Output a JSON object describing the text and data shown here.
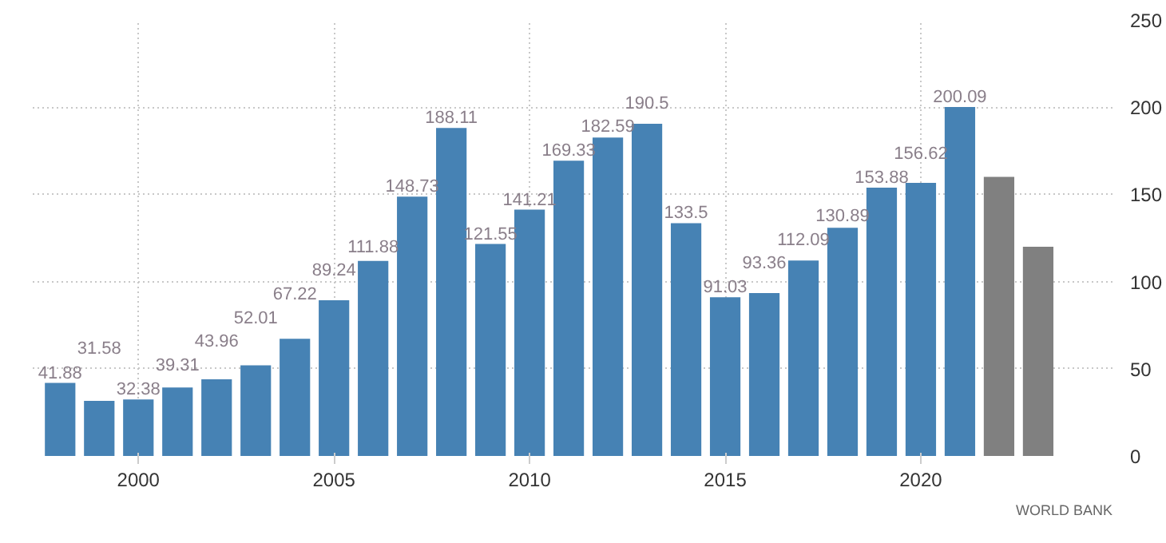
{
  "chart_data": {
    "type": "bar",
    "x": [
      1998,
      1999,
      2000,
      2001,
      2002,
      2003,
      2004,
      2005,
      2006,
      2007,
      2008,
      2009,
      2010,
      2011,
      2012,
      2013,
      2014,
      2015,
      2016,
      2017,
      2018,
      2019,
      2020,
      2021,
      2022,
      2023
    ],
    "values": [
      41.88,
      31.58,
      32.38,
      39.31,
      43.96,
      52.01,
      67.22,
      89.24,
      111.88,
      148.73,
      188.11,
      121.55,
      141.21,
      169.33,
      182.59,
      190.5,
      133.5,
      91.03,
      93.36,
      112.09,
      130.89,
      153.88,
      156.62,
      200.09,
      160,
      120
    ],
    "value_labels": [
      "41.88",
      "31.58",
      "32.38",
      "39.31",
      "43.96",
      "52.01",
      "67.22",
      "89.24",
      "111.88",
      "148.73",
      "188.11",
      "121.55",
      "141.21",
      "169.33",
      "182.59",
      "190.5",
      "133.5",
      "91.03",
      "93.36",
      "112.09",
      "130.89",
      "153.88",
      "156.62",
      "200.09",
      null,
      null
    ],
    "colors": [
      "#4682b4",
      "#4682b4",
      "#4682b4",
      "#4682b4",
      "#4682b4",
      "#4682b4",
      "#4682b4",
      "#4682b4",
      "#4682b4",
      "#4682b4",
      "#4682b4",
      "#4682b4",
      "#4682b4",
      "#4682b4",
      "#4682b4",
      "#4682b4",
      "#4682b4",
      "#4682b4",
      "#4682b4",
      "#4682b4",
      "#4682b4",
      "#4682b4",
      "#4682b4",
      "#4682b4",
      "#808080",
      "#808080"
    ],
    "xlim": [
      1997.3,
      2024.9
    ],
    "xticks": [
      2000,
      2005,
      2010,
      2015,
      2020
    ],
    "ylim": [
      0,
      250
    ],
    "yticks": [
      0,
      50,
      100,
      150,
      200,
      250
    ],
    "grid": true,
    "annotations": [
      "WORLD BANK"
    ]
  }
}
